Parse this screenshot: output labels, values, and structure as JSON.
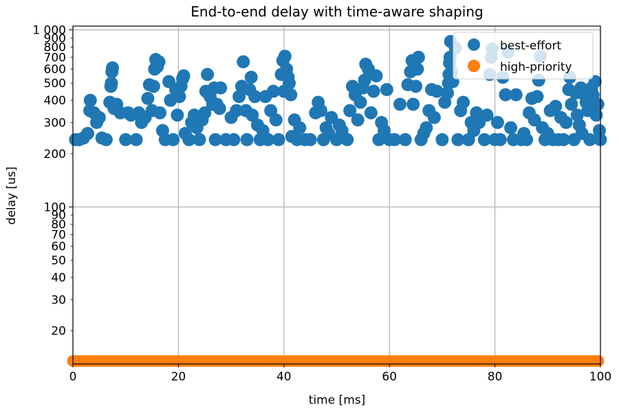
{
  "chart_data": {
    "type": "scatter",
    "title": "End-to-end delay with time-aware shaping",
    "xlabel": "time [ms]",
    "ylabel": "delay [us]",
    "xlim": [
      0,
      100
    ],
    "ylim": [
      13,
      1050
    ],
    "yscale": "log",
    "grid": true,
    "legend": "top-right",
    "x_ticks": [
      0,
      20,
      40,
      60,
      80,
      100
    ],
    "x_tick_labels": [
      "0",
      "20",
      "40",
      "60",
      "80",
      "100"
    ],
    "y_major_ticks": [
      100,
      1000
    ],
    "y_major_tick_labels": [
      "100",
      "1 000"
    ],
    "y_minor_ticks": [
      20,
      30,
      40,
      50,
      60,
      70,
      80,
      90,
      200,
      300,
      400,
      500,
      600,
      700,
      800,
      900
    ],
    "y_minor_tick_labels": [
      "20",
      "30",
      "40",
      "50",
      "60",
      "70",
      "80",
      "90",
      "200",
      "300",
      "400",
      "500",
      "600",
      "700",
      "800",
      "900"
    ],
    "series": [
      {
        "name": "best-effort",
        "color": "#1f77b4",
        "points": [
          [
            0.5,
            240
          ],
          [
            1.2,
            240
          ],
          [
            2.0,
            245
          ],
          [
            2.8,
            260
          ],
          [
            3.2,
            350
          ],
          [
            3.3,
            400
          ],
          [
            4.0,
            340
          ],
          [
            4.5,
            300
          ],
          [
            5.0,
            320
          ],
          [
            5.5,
            245
          ],
          [
            6.3,
            240
          ],
          [
            7.0,
            390
          ],
          [
            7.2,
            480
          ],
          [
            7.3,
            500
          ],
          [
            7.4,
            580
          ],
          [
            7.5,
            610
          ],
          [
            7.8,
            360
          ],
          [
            8.3,
            380
          ],
          [
            9.0,
            340
          ],
          [
            10.0,
            240
          ],
          [
            10.5,
            340
          ],
          [
            11.0,
            330
          ],
          [
            12.0,
            240
          ],
          [
            12.5,
            340
          ],
          [
            13.0,
            300
          ],
          [
            13.7,
            320
          ],
          [
            14.2,
            410
          ],
          [
            14.5,
            490
          ],
          [
            15.0,
            350
          ],
          [
            15.3,
            480
          ],
          [
            15.5,
            600
          ],
          [
            15.7,
            680
          ],
          [
            16.0,
            620
          ],
          [
            16.3,
            660
          ],
          [
            16.5,
            340
          ],
          [
            17.0,
            270
          ],
          [
            17.5,
            240
          ],
          [
            18.2,
            510
          ],
          [
            18.5,
            400
          ],
          [
            19.0,
            240
          ],
          [
            19.5,
            460
          ],
          [
            19.8,
            330
          ],
          [
            20.2,
            420
          ],
          [
            20.5,
            480
          ],
          [
            20.8,
            530
          ],
          [
            21.0,
            550
          ],
          [
            21.3,
            260
          ],
          [
            22.0,
            240
          ],
          [
            22.5,
            300
          ],
          [
            23.0,
            330
          ],
          [
            23.5,
            280
          ],
          [
            24.0,
            240
          ],
          [
            24.5,
            310
          ],
          [
            25.0,
            340
          ],
          [
            25.2,
            450
          ],
          [
            25.5,
            560
          ],
          [
            26.0,
            420
          ],
          [
            26.5,
            380
          ],
          [
            26.8,
            470
          ],
          [
            27.0,
            240
          ],
          [
            27.3,
            380
          ],
          [
            27.8,
            360
          ],
          [
            28.0,
            470
          ],
          [
            29.0,
            240
          ],
          [
            30.0,
            320
          ],
          [
            30.5,
            240
          ],
          [
            31.0,
            350
          ],
          [
            31.5,
            420
          ],
          [
            32.0,
            480
          ],
          [
            32.3,
            660
          ],
          [
            32.8,
            350
          ],
          [
            33.0,
            240
          ],
          [
            33.5,
            460
          ],
          [
            33.8,
            540
          ],
          [
            34.0,
            330
          ],
          [
            34.5,
            420
          ],
          [
            35.0,
            290
          ],
          [
            35.5,
            240
          ],
          [
            36.0,
            270
          ],
          [
            36.5,
            420
          ],
          [
            37.0,
            240
          ],
          [
            37.5,
            350
          ],
          [
            38.0,
            450
          ],
          [
            38.5,
            310
          ],
          [
            39.0,
            240
          ],
          [
            39.5,
            560
          ],
          [
            39.8,
            670
          ],
          [
            40.0,
            450
          ],
          [
            40.2,
            710
          ],
          [
            40.5,
            600
          ],
          [
            40.8,
            540
          ],
          [
            41.0,
            500
          ],
          [
            41.3,
            430
          ],
          [
            41.5,
            250
          ],
          [
            42.0,
            310
          ],
          [
            42.5,
            240
          ],
          [
            43.0,
            280
          ],
          [
            44.0,
            240
          ],
          [
            45.0,
            240
          ],
          [
            46.0,
            340
          ],
          [
            46.5,
            390
          ],
          [
            47.0,
            350
          ],
          [
            47.5,
            240
          ],
          [
            48.0,
            280
          ],
          [
            48.5,
            260
          ],
          [
            49.0,
            320
          ],
          [
            50.0,
            240
          ],
          [
            50.5,
            290
          ],
          [
            51.0,
            270
          ],
          [
            52.0,
            240
          ],
          [
            52.5,
            350
          ],
          [
            53.0,
            480
          ],
          [
            53.5,
            430
          ],
          [
            54.0,
            310
          ],
          [
            54.5,
            390
          ],
          [
            55.0,
            470
          ],
          [
            55.3,
            520
          ],
          [
            55.5,
            640
          ],
          [
            56.0,
            600
          ],
          [
            56.5,
            340
          ],
          [
            57.0,
            450
          ],
          [
            57.5,
            550
          ],
          [
            58.0,
            240
          ],
          [
            58.5,
            300
          ],
          [
            59.0,
            270
          ],
          [
            59.5,
            460
          ],
          [
            60.0,
            240
          ],
          [
            61.0,
            240
          ],
          [
            62.0,
            380
          ],
          [
            63.0,
            240
          ],
          [
            63.5,
            490
          ],
          [
            64.0,
            580
          ],
          [
            64.3,
            670
          ],
          [
            64.5,
            380
          ],
          [
            65.0,
            480
          ],
          [
            65.3,
            600
          ],
          [
            65.5,
            700
          ],
          [
            66.0,
            240
          ],
          [
            66.5,
            260
          ],
          [
            67.0,
            280
          ],
          [
            67.5,
            350
          ],
          [
            68.0,
            460
          ],
          [
            68.5,
            320
          ],
          [
            69.0,
            450
          ],
          [
            70.0,
            240
          ],
          [
            70.5,
            390
          ],
          [
            71.0,
            440
          ],
          [
            71.2,
            500
          ],
          [
            71.3,
            560
          ],
          [
            71.4,
            650
          ],
          [
            71.5,
            700
          ],
          [
            71.6,
            860
          ],
          [
            71.8,
            580
          ],
          [
            72.0,
            510
          ],
          [
            72.5,
            790
          ],
          [
            73.0,
            240
          ],
          [
            73.5,
            350
          ],
          [
            74.0,
            390
          ],
          [
            75.0,
            240
          ],
          [
            75.5,
            300
          ],
          [
            76.0,
            270
          ],
          [
            76.5,
            340
          ],
          [
            77.0,
            300
          ],
          [
            78.0,
            240
          ],
          [
            78.5,
            330
          ],
          [
            79.0,
            560
          ],
          [
            79.3,
            700
          ],
          [
            79.5,
            780
          ],
          [
            80.0,
            240
          ],
          [
            80.5,
            300
          ],
          [
            81.0,
            240
          ],
          [
            81.5,
            540
          ],
          [
            82.0,
            430
          ],
          [
            82.5,
            750
          ],
          [
            83.0,
            280
          ],
          [
            83.5,
            240
          ],
          [
            84.0,
            430
          ],
          [
            85.0,
            240
          ],
          [
            85.5,
            260
          ],
          [
            86.0,
            240
          ],
          [
            86.5,
            340
          ],
          [
            87.0,
            410
          ],
          [
            87.5,
            310
          ],
          [
            88.0,
            420
          ],
          [
            88.3,
            520
          ],
          [
            88.6,
            710
          ],
          [
            89.0,
            280
          ],
          [
            89.5,
            240
          ],
          [
            90.0,
            260
          ],
          [
            90.5,
            350
          ],
          [
            91.0,
            240
          ],
          [
            91.5,
            370
          ],
          [
            92.0,
            240
          ],
          [
            92.5,
            320
          ],
          [
            93.0,
            240
          ],
          [
            93.5,
            300
          ],
          [
            94.0,
            460
          ],
          [
            94.2,
            540
          ],
          [
            94.5,
            380
          ],
          [
            95.0,
            240
          ],
          [
            95.3,
            440
          ],
          [
            95.6,
            330
          ],
          [
            96.0,
            290
          ],
          [
            96.3,
            470
          ],
          [
            96.5,
            260
          ],
          [
            97.0,
            430
          ],
          [
            97.3,
            390
          ],
          [
            97.6,
            350
          ],
          [
            98.0,
            240
          ],
          [
            98.3,
            470
          ],
          [
            98.6,
            430
          ],
          [
            99.0,
            510
          ],
          [
            99.2,
            330
          ],
          [
            99.5,
            380
          ],
          [
            99.8,
            270
          ],
          [
            100.0,
            240
          ]
        ]
      },
      {
        "name": "high-priority",
        "color": "#ff7f0e",
        "x_step": 0.6,
        "y_constant": 13.5
      }
    ]
  }
}
